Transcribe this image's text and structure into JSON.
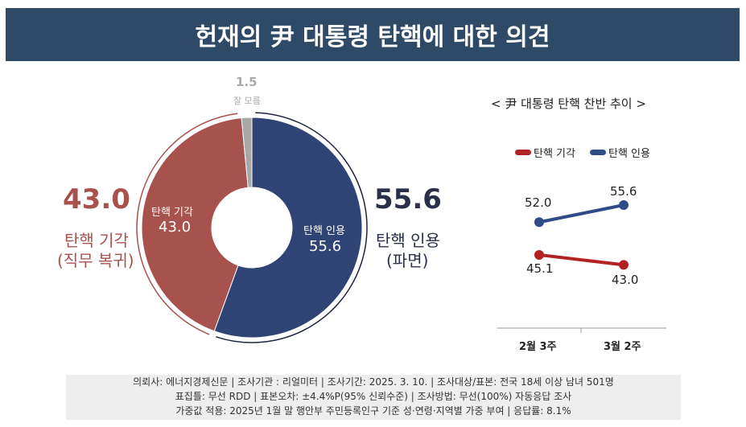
{
  "title": "헌재의 尹 대통령 탄핵에 대한 의견",
  "colors": {
    "oppose": "#a8524e",
    "approve": "#2f4374",
    "unknown": "#a8a8a8",
    "header": "#2e4a66",
    "line_oppose": "#b22222",
    "line_approve": "#2f4c87"
  },
  "chart_data": [
    {
      "type": "pie",
      "donut": true,
      "slices": [
        {
          "name": "탄핵 인용",
          "value": 55.6
        },
        {
          "name": "탄핵 기각",
          "value": 43.0
        },
        {
          "name": "잘 모름",
          "value": 1.5
        }
      ],
      "labels": {
        "approve_big": "55.6",
        "approve_title": "탄핵 인용",
        "approve_sub": "(파면)",
        "oppose_big": "43.0",
        "oppose_title": "탄핵 기각",
        "oppose_sub": "(직무 복귀)",
        "unknown_value": "1.5",
        "unknown_label": "잘 모름",
        "approve_inner_label": "탄핵 인용",
        "approve_inner_value": "55.6",
        "oppose_inner_label": "탄핵 기각",
        "oppose_inner_value": "43.0"
      }
    },
    {
      "type": "line",
      "title": "< 尹 대통령 탄핵 찬반 추이 >",
      "categories": [
        "2월 3주",
        "3월 2주"
      ],
      "series": [
        {
          "name": "탄핵 기각",
          "values": [
            45.1,
            43.0
          ]
        },
        {
          "name": "탄핵 인용",
          "values": [
            52.0,
            55.6
          ]
        }
      ],
      "value_labels": {
        "oppose": [
          "45.1",
          "43.0"
        ],
        "approve": [
          "52.0",
          "55.6"
        ]
      }
    }
  ],
  "footer": [
    "의뢰사: 에너지경제신문 | 조사기관 : 리얼미터  |  조사기간: 2025. 3. 10. | 조사대상/표본: 전국 18세 이상 남녀 501명",
    "표집틀: 무선 RDD | 표본오차: ±4.4%P(95% 신뢰수준) | 조사방법: 무선(100%) 자동응답 조사",
    "가중값 적용: 2025년 1월 말 행안부 주민등록인구 기준 성·연령·지역별 가중 부여 | 응답률: 8.1%"
  ]
}
